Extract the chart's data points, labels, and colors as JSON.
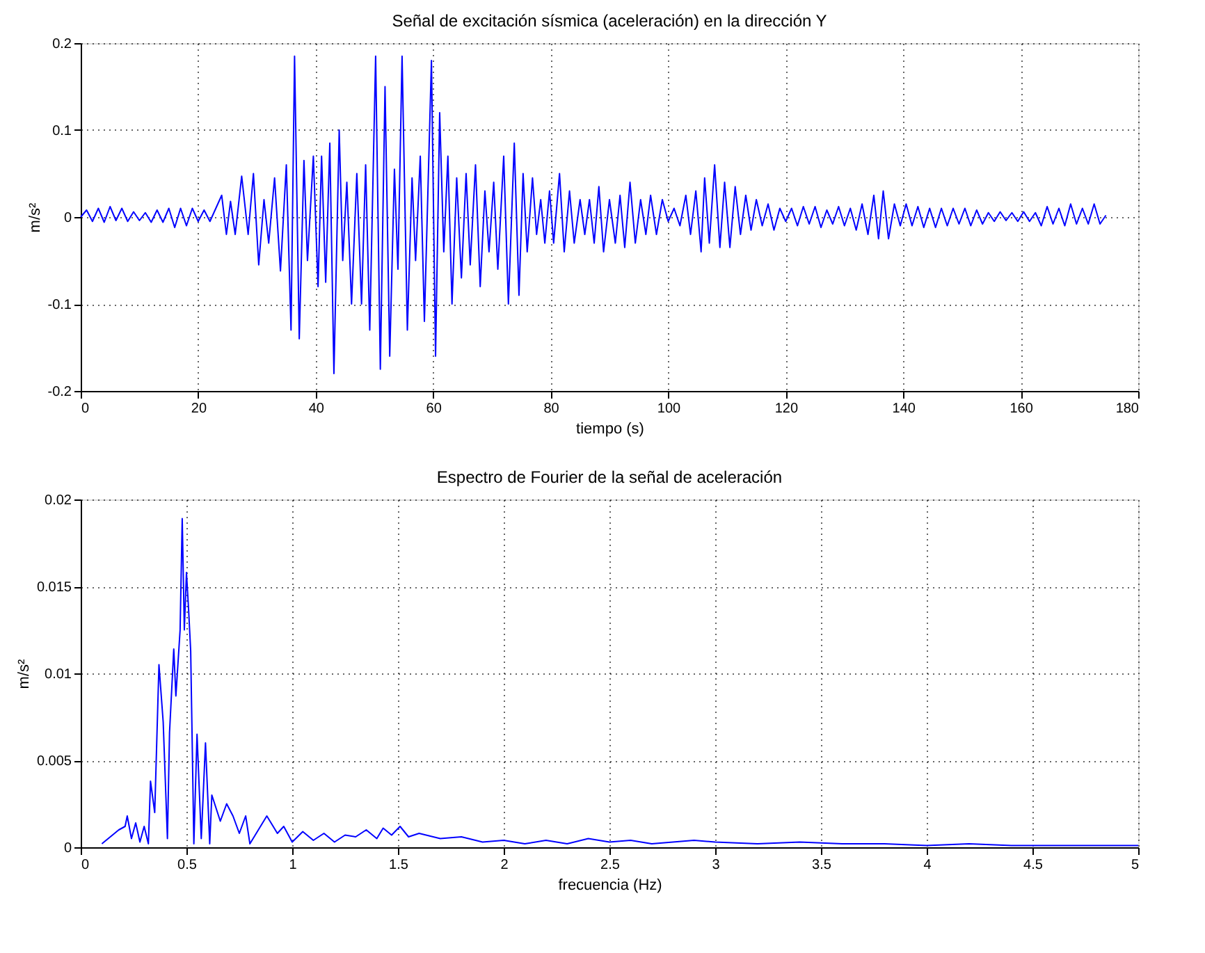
{
  "chart_data": [
    {
      "type": "line",
      "title": "Señal de excitación sísmica (aceleración) en la dirección Y",
      "xlabel": "tiempo (s)",
      "ylabel": "m/s²",
      "xlim": [
        0,
        180
      ],
      "xticks": [
        0,
        20,
        40,
        60,
        80,
        100,
        120,
        140,
        160,
        180
      ],
      "ylim": [
        -0.2,
        0.2
      ],
      "yticks": [
        -0.2,
        -0.1,
        0,
        0.1,
        0.2
      ],
      "grid": true,
      "marker": "none",
      "line_style": "solid",
      "series": [
        {
          "color": "#0000ff",
          "x": [
            0,
            1,
            2,
            3,
            4,
            5,
            6,
            7,
            8,
            9,
            10,
            11,
            12,
            13,
            14,
            15,
            16,
            17,
            18,
            19,
            20,
            21,
            22,
            23,
            24,
            24.8,
            25.5,
            26.3,
            27.4,
            28.5,
            29.4,
            30.3,
            31.2,
            32,
            33,
            34,
            35,
            35.8,
            36.4,
            37.2,
            38,
            38.6,
            39.6,
            40.4,
            41,
            41.7,
            42.4,
            43.1,
            44,
            44.6,
            45.3,
            46.1,
            47,
            47.8,
            48.5,
            49.2,
            50.2,
            51,
            51.8,
            52.6,
            53.4,
            54,
            54.7,
            55.6,
            56.4,
            57,
            57.8,
            58.5,
            59.7,
            60.4,
            61.1,
            61.8,
            62.5,
            63.2,
            64,
            64.8,
            65.6,
            66.3,
            67.2,
            68,
            68.8,
            69.5,
            70.3,
            71,
            72,
            72.8,
            73.8,
            74.6,
            75.3,
            76,
            76.9,
            77.6,
            78.3,
            79,
            79.8,
            80.5,
            81.5,
            82.3,
            83.2,
            84,
            85,
            85.8,
            86.6,
            87.4,
            88.2,
            89,
            90,
            91,
            91.8,
            92.6,
            93.5,
            94.4,
            95.3,
            96.2,
            97,
            98,
            99,
            100,
            101,
            102,
            103,
            103.8,
            104.7,
            105.6,
            106.2,
            107,
            107.9,
            108.8,
            109.6,
            110.5,
            111.4,
            112.3,
            113.2,
            114.1,
            115,
            116,
            117,
            118,
            119,
            120,
            121,
            122,
            123,
            124,
            125,
            126,
            127,
            128,
            129,
            130,
            131,
            132,
            133,
            134,
            135,
            135.8,
            136.6,
            137.5,
            138.5,
            139.5,
            140.5,
            141.5,
            142.5,
            143.5,
            144.5,
            145.5,
            146.5,
            147.5,
            148.5,
            149.5,
            150.5,
            151.5,
            152.5,
            153.5,
            154.5,
            155.5,
            156.5,
            157.5,
            158.5,
            159.5,
            160.5,
            161.5,
            162.5,
            163.5,
            164.5,
            165.5,
            166.5,
            167.5,
            168.5,
            169.5,
            170.5,
            171.5,
            172.5,
            173.5,
            174.5
          ],
          "values": [
            0,
            0.008,
            -0.005,
            0.01,
            -0.006,
            0.012,
            -0.004,
            0.01,
            -0.005,
            0.006,
            -0.004,
            0.005,
            -0.006,
            0.008,
            -0.006,
            0.01,
            -0.012,
            0.01,
            -0.01,
            0.01,
            -0.005,
            0.008,
            -0.005,
            0.01,
            0.025,
            -0.02,
            0.018,
            -0.02,
            0.047,
            -0.02,
            0.05,
            -0.055,
            0.02,
            -0.03,
            0.045,
            -0.062,
            0.06,
            -0.13,
            0.185,
            -0.14,
            0.065,
            -0.05,
            0.07,
            -0.08,
            0.07,
            -0.075,
            0.085,
            -0.18,
            0.1,
            -0.05,
            0.04,
            -0.1,
            0.05,
            -0.1,
            0.06,
            -0.13,
            0.185,
            -0.175,
            0.15,
            -0.16,
            0.055,
            -0.06,
            0.185,
            -0.13,
            0.045,
            -0.05,
            0.07,
            -0.12,
            0.18,
            -0.16,
            0.12,
            -0.04,
            0.07,
            -0.1,
            0.045,
            -0.07,
            0.05,
            -0.055,
            0.06,
            -0.08,
            0.03,
            -0.04,
            0.04,
            -0.06,
            0.07,
            -0.1,
            0.085,
            -0.09,
            0.05,
            -0.04,
            0.045,
            -0.02,
            0.02,
            -0.03,
            0.03,
            -0.03,
            0.05,
            -0.04,
            0.03,
            -0.03,
            0.02,
            -0.02,
            0.02,
            -0.03,
            0.035,
            -0.04,
            0.02,
            -0.03,
            0.025,
            -0.035,
            0.04,
            -0.03,
            0.02,
            -0.02,
            0.025,
            -0.02,
            0.02,
            -0.005,
            0.01,
            -0.01,
            0.025,
            -0.02,
            0.03,
            -0.04,
            0.045,
            -0.03,
            0.06,
            -0.035,
            0.04,
            -0.035,
            0.035,
            -0.02,
            0.025,
            -0.015,
            0.02,
            -0.01,
            0.015,
            -0.015,
            0.01,
            -0.005,
            0.01,
            -0.01,
            0.012,
            -0.008,
            0.012,
            -0.012,
            0.008,
            -0.008,
            0.012,
            -0.01,
            0.01,
            -0.015,
            0.015,
            -0.02,
            0.025,
            -0.025,
            0.03,
            -0.025,
            0.015,
            -0.01,
            0.015,
            -0.01,
            0.012,
            -0.012,
            0.01,
            -0.012,
            0.01,
            -0.01,
            0.01,
            -0.008,
            0.01,
            -0.01,
            0.008,
            -0.008,
            0.005,
            -0.005,
            0.006,
            -0.004,
            0.005,
            -0.005,
            0.006,
            -0.005,
            0.005,
            -0.01,
            0.012,
            -0.008,
            0.01,
            -0.01,
            0.015,
            -0.008,
            0.01,
            -0.008,
            0.015,
            -0.008,
            0.002
          ]
        }
      ]
    },
    {
      "type": "line",
      "title": "Espectro de Fourier de la señal de aceleración",
      "xlabel": "frecuencia (Hz)",
      "ylabel": "m/s²",
      "xlim": [
        0,
        5
      ],
      "xticks": [
        0,
        0.5,
        1,
        1.5,
        2,
        2.5,
        3,
        3.5,
        4,
        4.5,
        5
      ],
      "ylim": [
        0,
        0.02
      ],
      "yticks": [
        0,
        0.005,
        0.01,
        0.015,
        0.02
      ],
      "grid": true,
      "marker": "none",
      "line_style": "solid",
      "series": [
        {
          "color": "#0000ff",
          "x": [
            0.1,
            0.13,
            0.16,
            0.18,
            0.21,
            0.22,
            0.24,
            0.26,
            0.28,
            0.3,
            0.32,
            0.33,
            0.35,
            0.37,
            0.39,
            0.41,
            0.42,
            0.44,
            0.45,
            0.47,
            0.48,
            0.49,
            0.5,
            0.51,
            0.52,
            0.535,
            0.55,
            0.57,
            0.59,
            0.61,
            0.62,
            0.66,
            0.69,
            0.72,
            0.75,
            0.78,
            0.8,
            0.84,
            0.88,
            0.93,
            0.96,
            1.0,
            1.05,
            1.1,
            1.15,
            1.2,
            1.25,
            1.3,
            1.35,
            1.4,
            1.43,
            1.47,
            1.51,
            1.55,
            1.6,
            1.7,
            1.8,
            1.9,
            2.0,
            2.1,
            2.2,
            2.3,
            2.4,
            2.5,
            2.6,
            2.7,
            2.8,
            2.9,
            3.0,
            3.2,
            3.4,
            3.6,
            3.8,
            4.0,
            4.2,
            4.4,
            4.6,
            4.8,
            5.0
          ],
          "values": [
            0.0002,
            0.0005,
            0.0008,
            0.001,
            0.0012,
            0.0018,
            0.0005,
            0.0014,
            0.0003,
            0.0012,
            0.0002,
            0.0038,
            0.002,
            0.0105,
            0.0072,
            0.0005,
            0.0066,
            0.0114,
            0.0087,
            0.0125,
            0.0189,
            0.0125,
            0.0158,
            0.0137,
            0.0113,
            0.0002,
            0.0065,
            0.0005,
            0.006,
            0.0002,
            0.003,
            0.0015,
            0.0025,
            0.0018,
            0.0008,
            0.0018,
            0.0002,
            0.001,
            0.0018,
            0.0008,
            0.0012,
            0.0003,
            0.0009,
            0.0004,
            0.0008,
            0.0003,
            0.0007,
            0.0006,
            0.001,
            0.0005,
            0.0011,
            0.0007,
            0.0012,
            0.0006,
            0.0008,
            0.0005,
            0.0006,
            0.0003,
            0.0004,
            0.0002,
            0.0004,
            0.0002,
            0.0005,
            0.0003,
            0.0004,
            0.0002,
            0.0003,
            0.0004,
            0.0003,
            0.0002,
            0.0003,
            0.0002,
            0.0002,
            0.0001,
            0.0002,
            0.0001,
            0.0001,
            0.0001,
            0.0001
          ]
        }
      ]
    }
  ]
}
